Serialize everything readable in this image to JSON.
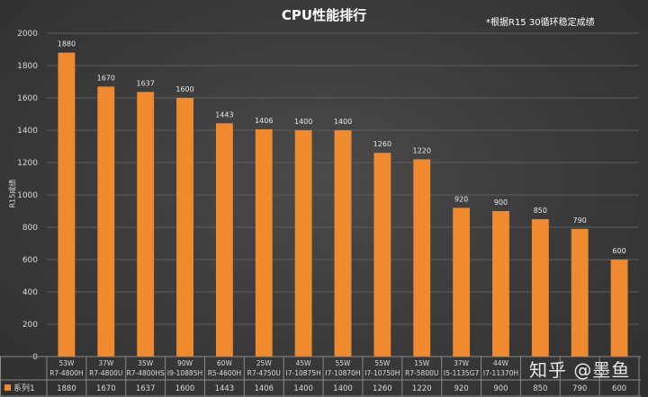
{
  "chart_data": {
    "type": "bar",
    "title": "CPU性能排行",
    "note": "*根据R15 30循环稳定成绩",
    "ylabel": "R15成绩",
    "ylim": [
      0,
      2000
    ],
    "yticks": [
      0,
      200,
      400,
      600,
      800,
      1000,
      1200,
      1400,
      1600,
      1800,
      2000
    ],
    "grid": true,
    "categories": [
      {
        "watt": "53W",
        "cpu": "R7-4800H"
      },
      {
        "watt": "37W",
        "cpu": "R7-4800U"
      },
      {
        "watt": "35W",
        "cpu": "R7-4800HS"
      },
      {
        "watt": "90W",
        "cpu": "I9-10885H"
      },
      {
        "watt": "60W",
        "cpu": "R5-4600H"
      },
      {
        "watt": "25W",
        "cpu": "R7-4750U"
      },
      {
        "watt": "45W",
        "cpu": "I7-10875H"
      },
      {
        "watt": "55W",
        "cpu": "I7-10870H"
      },
      {
        "watt": "55W",
        "cpu": "I7-10750H"
      },
      {
        "watt": "15W",
        "cpu": "R7-5800U"
      },
      {
        "watt": "37W",
        "cpu": "I5-1135G7"
      },
      {
        "watt": "44W",
        "cpu": "I7-11370H"
      },
      {
        "watt": "",
        "cpu": ""
      },
      {
        "watt": "",
        "cpu": ""
      },
      {
        "watt": "",
        "cpu": ""
      }
    ],
    "series": [
      {
        "name": "系列1",
        "color": "#f08a2e",
        "values": [
          1880,
          1670,
          1637,
          1600,
          1443,
          1406,
          1400,
          1400,
          1260,
          1220,
          920,
          900,
          850,
          790,
          600
        ]
      }
    ]
  },
  "watermark": "知乎 @墨鱼"
}
